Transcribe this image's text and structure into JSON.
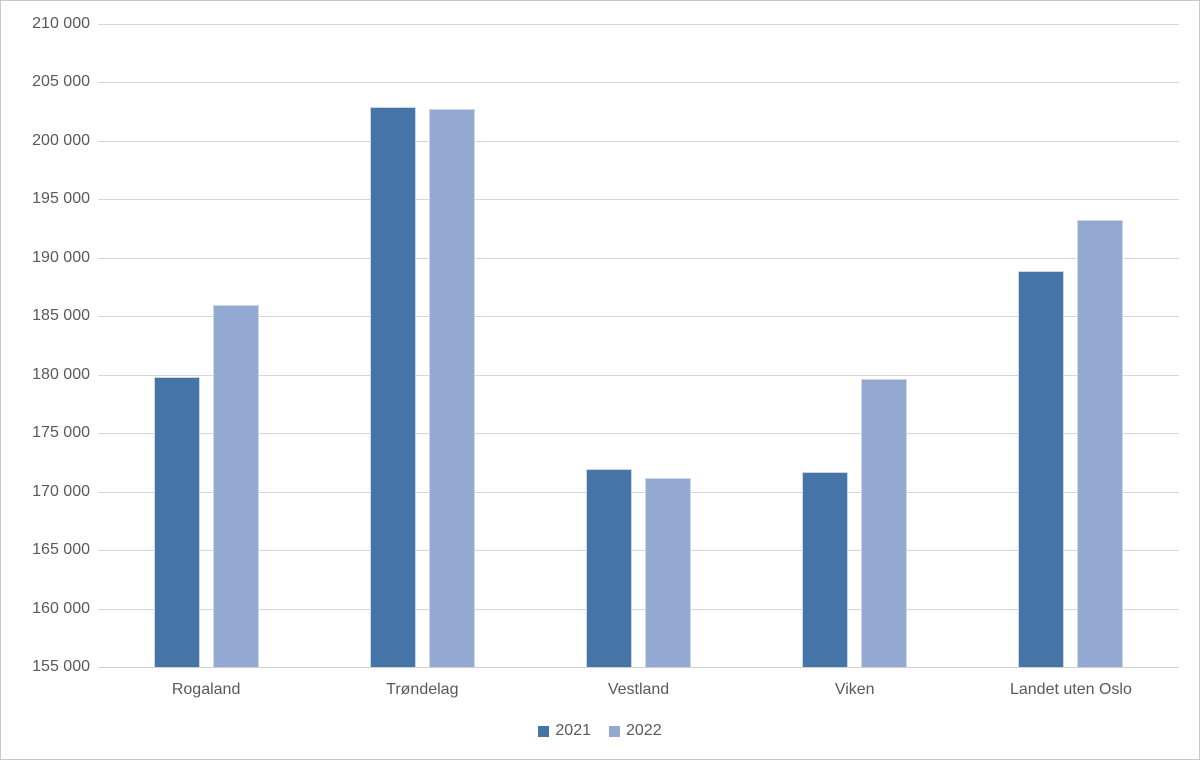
{
  "chart_data": {
    "type": "bar",
    "title": "",
    "categories": [
      "Rogaland",
      "Trøndelag",
      "Vestland",
      "Viken",
      "Landet uten Oslo"
    ],
    "series": [
      {
        "name": "2021",
        "color": "#4574A7",
        "values": [
          179800,
          202900,
          171900,
          171700,
          188900
        ]
      },
      {
        "name": "2022",
        "color": "#93A9D1",
        "values": [
          186000,
          202700,
          171200,
          179600,
          193200
        ]
      }
    ],
    "ylim": [
      155000,
      210000
    ],
    "ytick_step": 5000,
    "yticks": [
      210000,
      205000,
      200000,
      195000,
      190000,
      185000,
      180000,
      175000,
      170000,
      165000,
      160000,
      155000
    ],
    "ytick_labels": [
      "210 000",
      "205 000",
      "200 000",
      "195 000",
      "190 000",
      "185 000",
      "180 000",
      "175 000",
      "170 000",
      "165 000",
      "160 000",
      "155 000"
    ],
    "xlabel": "",
    "ylabel": "",
    "grid": true,
    "legend_position": "bottom",
    "legend": {
      "items": [
        {
          "label": "2021",
          "color": "#4574A7"
        },
        {
          "label": "2022",
          "color": "#93A9D1"
        }
      ]
    }
  },
  "styles": {
    "text_color": "#595959",
    "gridline_color": "#D6D6D6",
    "axis_line_color": "#D0D0D0",
    "bar_border_color": "#CCD6E6",
    "frame_border_color": "#C9C9C9",
    "background": "#FFFFFF"
  }
}
